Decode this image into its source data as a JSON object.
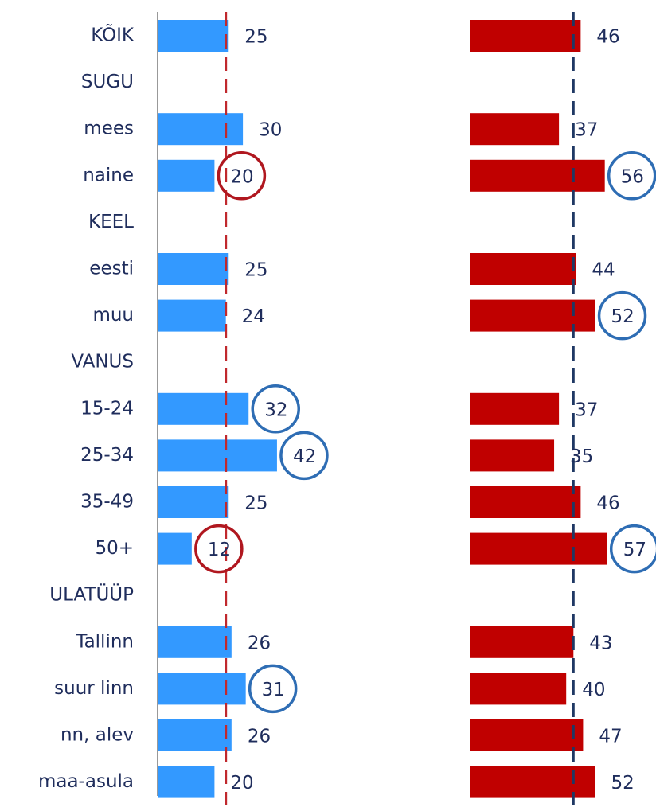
{
  "chart_data": {
    "type": "bar",
    "categories": [
      "KÕIK",
      "SUGU",
      "mees",
      "naine",
      "KEEL",
      "eesti",
      "muu",
      "VANUS",
      "15-24",
      "25-34",
      "35-49",
      "50+",
      "ULATÜÜP",
      "Tallinn",
      "suur linn",
      "nn, alev",
      "maa-asula"
    ],
    "series": [
      {
        "color": "#3399ff",
        "values": [
          25,
          null,
          30,
          20,
          null,
          25,
          24,
          null,
          32,
          42,
          25,
          12,
          null,
          26,
          31,
          26,
          20
        ],
        "reference": 24,
        "reference_color": "#c0282d",
        "highlight": [
          null,
          null,
          null,
          "low",
          null,
          null,
          null,
          null,
          "high",
          "high",
          null,
          "low",
          null,
          null,
          "high",
          null,
          null
        ]
      },
      {
        "color": "#c00000",
        "values": [
          46,
          null,
          37,
          56,
          null,
          44,
          52,
          null,
          37,
          35,
          46,
          57,
          null,
          43,
          40,
          47,
          52
        ],
        "reference": 43,
        "reference_color": "#1f3864",
        "highlight": [
          null,
          null,
          null,
          "high",
          null,
          null,
          "high",
          null,
          null,
          null,
          null,
          "high",
          null,
          null,
          null,
          null,
          null
        ]
      }
    ],
    "highlight_colors": {
      "high": "#2e6db4",
      "low": "#b0171f"
    }
  }
}
